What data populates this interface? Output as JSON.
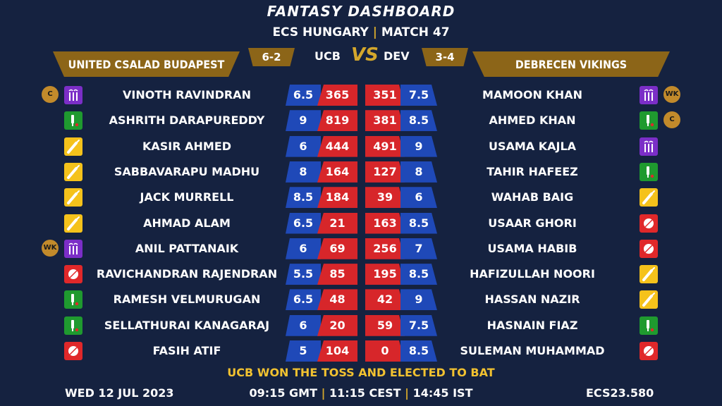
{
  "header": {
    "title": "FANTASY DASHBOARD",
    "league": "ECS HUNGARY",
    "separator": "|",
    "match": "MATCH 47"
  },
  "teams": {
    "left": {
      "name": "UNITED CSALAD BUDAPEST",
      "abbr": "UCB",
      "record": "6-2"
    },
    "right": {
      "name": "DEBRECEN VIKINGS",
      "abbr": "DEV",
      "record": "3-4"
    },
    "vs": "VS"
  },
  "colors": {
    "background": "#152240",
    "gold": "#8c6518",
    "credits_blue": "#1f49b8",
    "points_red": "#d7262a",
    "bat": "#f5c21b",
    "bowl": "#e0282a",
    "allround": "#1f9a2f",
    "keeper": "#7b2ec7",
    "toss_text": "#f2c230"
  },
  "left_players": [
    {
      "name": "VINOTH RAVINDRAN",
      "credits": "6.5",
      "points": "365",
      "role": "keeper-icon",
      "badge": "C"
    },
    {
      "name": "ASHRITH DARAPUREDDY",
      "credits": "9",
      "points": "819",
      "role": "allrounder-icon",
      "badge": ""
    },
    {
      "name": "KASIR AHMED",
      "credits": "6",
      "points": "444",
      "role": "batsman-icon",
      "badge": ""
    },
    {
      "name": "SABBAVARAPU MADHU",
      "credits": "8",
      "points": "164",
      "role": "batsman-icon",
      "badge": ""
    },
    {
      "name": "JACK MURRELL",
      "credits": "8.5",
      "points": "184",
      "role": "batsman-icon",
      "badge": ""
    },
    {
      "name": "AHMAD ALAM",
      "credits": "6.5",
      "points": "21",
      "role": "batsman-icon",
      "badge": ""
    },
    {
      "name": "ANIL PATTANAIK",
      "credits": "6",
      "points": "69",
      "role": "keeper-icon",
      "badge": "WK"
    },
    {
      "name": "RAVICHANDRAN RAJENDRAN",
      "credits": "5.5",
      "points": "85",
      "role": "bowler-icon",
      "badge": ""
    },
    {
      "name": "RAMESH VELMURUGAN",
      "credits": "6.5",
      "points": "48",
      "role": "allrounder-icon",
      "badge": ""
    },
    {
      "name": "SELLATHURAI KANAGARAJ",
      "credits": "6",
      "points": "20",
      "role": "allrounder-icon",
      "badge": ""
    },
    {
      "name": "FASIH ATIF",
      "credits": "5",
      "points": "104",
      "role": "bowler-icon",
      "badge": ""
    }
  ],
  "right_players": [
    {
      "name": "MAMOON KHAN",
      "credits": "7.5",
      "points": "351",
      "role": "keeper-icon",
      "badge": "WK"
    },
    {
      "name": "AHMED KHAN",
      "credits": "8.5",
      "points": "381",
      "role": "allrounder-icon",
      "badge": "C"
    },
    {
      "name": "USAMA KAJLA",
      "credits": "9",
      "points": "491",
      "role": "keeper-icon",
      "badge": ""
    },
    {
      "name": "TAHIR HAFEEZ",
      "credits": "8",
      "points": "127",
      "role": "allrounder-icon",
      "badge": ""
    },
    {
      "name": "WAHAB BAIG",
      "credits": "6",
      "points": "39",
      "role": "batsman-icon",
      "badge": ""
    },
    {
      "name": "USAAR GHORI",
      "credits": "8.5",
      "points": "163",
      "role": "bowler-icon",
      "badge": ""
    },
    {
      "name": "USAMA HABIB",
      "credits": "7",
      "points": "256",
      "role": "bowler-icon",
      "badge": ""
    },
    {
      "name": "HAFIZULLAH NOORI",
      "credits": "8.5",
      "points": "195",
      "role": "batsman-icon",
      "badge": ""
    },
    {
      "name": "HASSAN NAZIR",
      "credits": "9",
      "points": "42",
      "role": "batsman-icon",
      "badge": ""
    },
    {
      "name": "HASNAIN FIAZ",
      "credits": "7.5",
      "points": "59",
      "role": "allrounder-icon",
      "badge": ""
    },
    {
      "name": "SULEMAN MUHAMMAD",
      "credits": "8.5",
      "points": "0",
      "role": "bowler-icon",
      "badge": ""
    }
  ],
  "footer": {
    "toss": "UCB WON THE TOSS AND ELECTED TO BAT",
    "date": "WED 12 JUL 2023",
    "time_gmt": "09:15 GMT",
    "time_cest": "11:15 CEST",
    "time_ist": "14:45 IST",
    "separator": "|",
    "code": "ECS23.580"
  }
}
